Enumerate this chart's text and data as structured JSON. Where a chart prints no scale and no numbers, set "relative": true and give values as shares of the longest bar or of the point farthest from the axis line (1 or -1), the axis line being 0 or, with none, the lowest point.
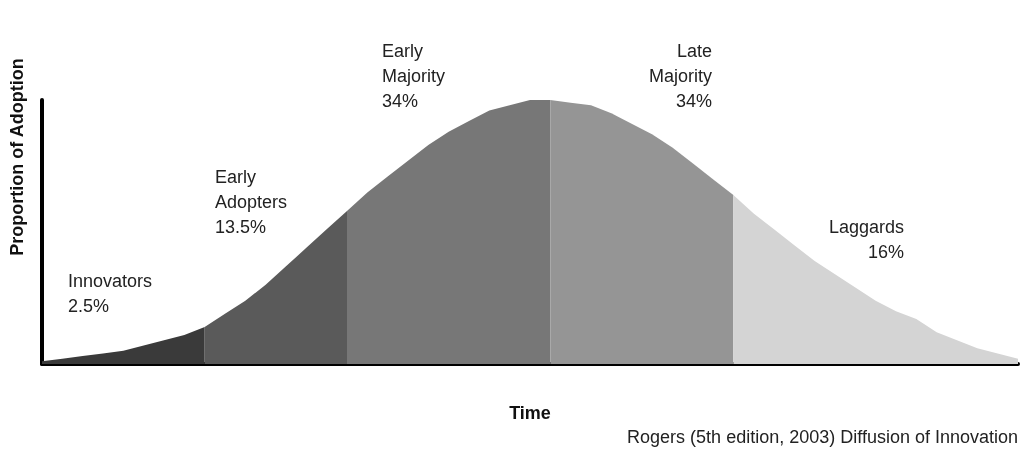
{
  "chart_data": {
    "type": "area",
    "relative": true,
    "xlabel": "Time",
    "ylabel": "Proportion of Adoption",
    "annotations": [
      "Rogers (5th edition, 2003) Diffusion of Innovation"
    ],
    "categories": [
      null,
      null,
      null,
      null,
      null,
      null,
      null,
      null,
      null,
      null,
      null,
      null,
      null,
      null,
      null,
      null,
      null,
      null,
      null,
      null,
      null,
      null,
      null,
      null,
      null,
      null,
      null,
      null,
      null,
      null,
      null,
      null,
      null,
      null,
      null,
      null,
      null,
      null,
      null,
      null,
      null,
      null,
      null,
      null,
      null,
      null,
      null,
      null,
      null
    ],
    "series": [
      {
        "name": "Innovators\n2.5%",
        "color": "#3a3a3a",
        "values": [
          0.01,
          0.02,
          0.03,
          0.04,
          0.05,
          0.07,
          0.09,
          0.11,
          0.14,
          null,
          null,
          null,
          null,
          null,
          null,
          null,
          null,
          null,
          null,
          null,
          null,
          null,
          null,
          null,
          null,
          null,
          null,
          null,
          null,
          null,
          null,
          null,
          null,
          null,
          null,
          null,
          null,
          null,
          null,
          null,
          null,
          null,
          null,
          null,
          null,
          null,
          null,
          null,
          null
        ]
      },
      {
        "name": "Early\nAdopters\n13.5%",
        "color": "#5a5a5a",
        "values": [
          null,
          null,
          null,
          null,
          null,
          null,
          null,
          null,
          0.14,
          0.19,
          0.24,
          0.3,
          0.37,
          0.44,
          0.51,
          0.58,
          null,
          null,
          null,
          null,
          null,
          null,
          null,
          null,
          null,
          null,
          null,
          null,
          null,
          null,
          null,
          null,
          null,
          null,
          null,
          null,
          null,
          null,
          null,
          null,
          null,
          null,
          null,
          null,
          null,
          null,
          null,
          null,
          null
        ]
      },
      {
        "name": "Early\nMajority\n34%",
        "color": "#777777",
        "values": [
          null,
          null,
          null,
          null,
          null,
          null,
          null,
          null,
          null,
          null,
          null,
          null,
          null,
          null,
          null,
          0.58,
          0.65,
          0.71,
          0.77,
          0.83,
          0.88,
          0.92,
          0.96,
          0.98,
          1,
          1,
          null,
          null,
          null,
          null,
          null,
          null,
          null,
          null,
          null,
          null,
          null,
          null,
          null,
          null,
          null,
          null,
          null,
          null,
          null,
          null,
          null,
          null,
          null
        ]
      },
      {
        "name": "Late\nMajority\n34%",
        "color": "#959595",
        "values": [
          null,
          null,
          null,
          null,
          null,
          null,
          null,
          null,
          null,
          null,
          null,
          null,
          null,
          null,
          null,
          null,
          null,
          null,
          null,
          null,
          null,
          null,
          null,
          null,
          null,
          1,
          0.99,
          0.98,
          0.95,
          0.91,
          0.87,
          0.82,
          0.76,
          0.7,
          0.64,
          null,
          null,
          null,
          null,
          null,
          null,
          null,
          null,
          null,
          null,
          null,
          null,
          null,
          null
        ]
      },
      {
        "name": "Laggards\n16%",
        "color": "#d4d4d4",
        "values": [
          null,
          null,
          null,
          null,
          null,
          null,
          null,
          null,
          null,
          null,
          null,
          null,
          null,
          null,
          null,
          null,
          null,
          null,
          null,
          null,
          null,
          null,
          null,
          null,
          null,
          null,
          null,
          null,
          null,
          null,
          null,
          null,
          null,
          null,
          0.64,
          0.57,
          0.51,
          0.45,
          0.39,
          0.34,
          0.29,
          0.24,
          0.2,
          0.17,
          0.12,
          0.09,
          0.06,
          0.04,
          0.02
        ]
      }
    ]
  }
}
